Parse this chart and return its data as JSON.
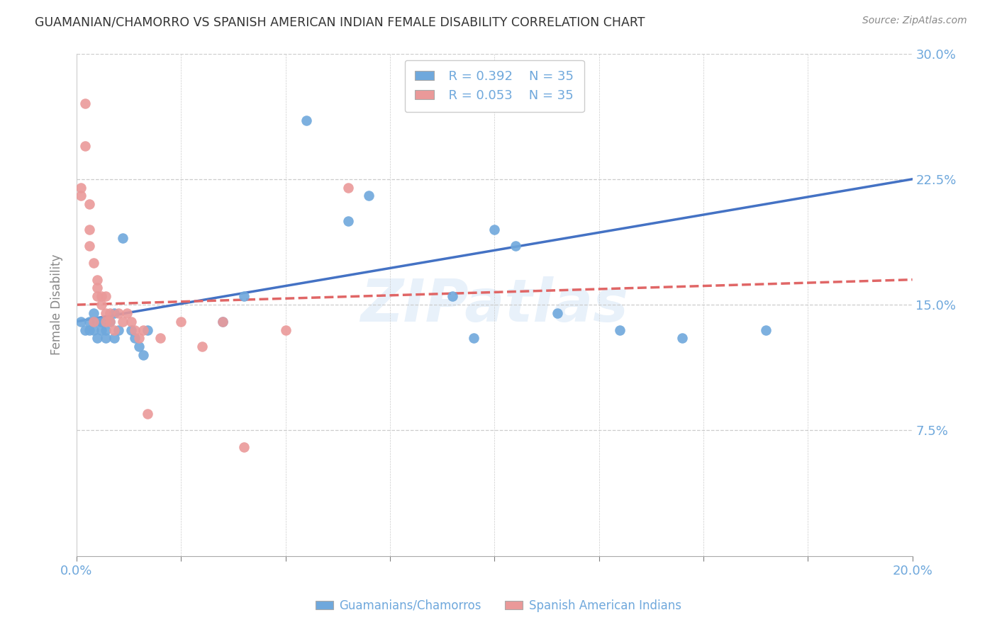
{
  "title": "GUAMANIAN/CHAMORRO VS SPANISH AMERICAN INDIAN FEMALE DISABILITY CORRELATION CHART",
  "source": "Source: ZipAtlas.com",
  "ylabel": "Female Disability",
  "xlim": [
    0.0,
    0.2
  ],
  "ylim": [
    0.0,
    0.3
  ],
  "yticks": [
    0.075,
    0.15,
    0.225,
    0.3
  ],
  "ytick_labels": [
    "7.5%",
    "15.0%",
    "22.5%",
    "30.0%"
  ],
  "xticks": [
    0.0,
    0.025,
    0.05,
    0.075,
    0.1,
    0.125,
    0.15,
    0.175,
    0.2
  ],
  "xtick_labels": [
    "0.0%",
    "",
    "",
    "",
    "",
    "",
    "",
    "",
    "20.0%"
  ],
  "legend_blue_r": "R = 0.392",
  "legend_blue_n": "N = 35",
  "legend_pink_r": "R = 0.053",
  "legend_pink_n": "N = 35",
  "blue_color": "#6fa8dc",
  "pink_color": "#ea9999",
  "blue_line_color": "#4472c4",
  "pink_line_color": "#e06666",
  "axis_color": "#6fa8dc",
  "watermark": "ZIPatlas",
  "blue_x": [
    0.001,
    0.002,
    0.003,
    0.003,
    0.004,
    0.004,
    0.005,
    0.005,
    0.006,
    0.006,
    0.007,
    0.007,
    0.008,
    0.009,
    0.009,
    0.01,
    0.011,
    0.013,
    0.014,
    0.015,
    0.016,
    0.017,
    0.035,
    0.04,
    0.055,
    0.065,
    0.07,
    0.09,
    0.095,
    0.1,
    0.105,
    0.115,
    0.13,
    0.145,
    0.165
  ],
  "blue_y": [
    0.14,
    0.135,
    0.135,
    0.14,
    0.135,
    0.145,
    0.14,
    0.13,
    0.135,
    0.14,
    0.135,
    0.13,
    0.14,
    0.13,
    0.145,
    0.135,
    0.19,
    0.135,
    0.13,
    0.125,
    0.12,
    0.135,
    0.14,
    0.155,
    0.26,
    0.2,
    0.215,
    0.155,
    0.13,
    0.195,
    0.185,
    0.145,
    0.135,
    0.13,
    0.135
  ],
  "pink_x": [
    0.001,
    0.001,
    0.002,
    0.002,
    0.003,
    0.003,
    0.003,
    0.004,
    0.004,
    0.005,
    0.005,
    0.005,
    0.006,
    0.006,
    0.007,
    0.007,
    0.007,
    0.008,
    0.008,
    0.009,
    0.01,
    0.011,
    0.012,
    0.013,
    0.014,
    0.015,
    0.016,
    0.017,
    0.02,
    0.025,
    0.03,
    0.035,
    0.04,
    0.05,
    0.065
  ],
  "pink_y": [
    0.22,
    0.215,
    0.27,
    0.245,
    0.21,
    0.195,
    0.185,
    0.175,
    0.14,
    0.165,
    0.16,
    0.155,
    0.155,
    0.15,
    0.155,
    0.145,
    0.14,
    0.145,
    0.14,
    0.135,
    0.145,
    0.14,
    0.145,
    0.14,
    0.135,
    0.13,
    0.135,
    0.085,
    0.13,
    0.14,
    0.125,
    0.14,
    0.065,
    0.135,
    0.22
  ]
}
